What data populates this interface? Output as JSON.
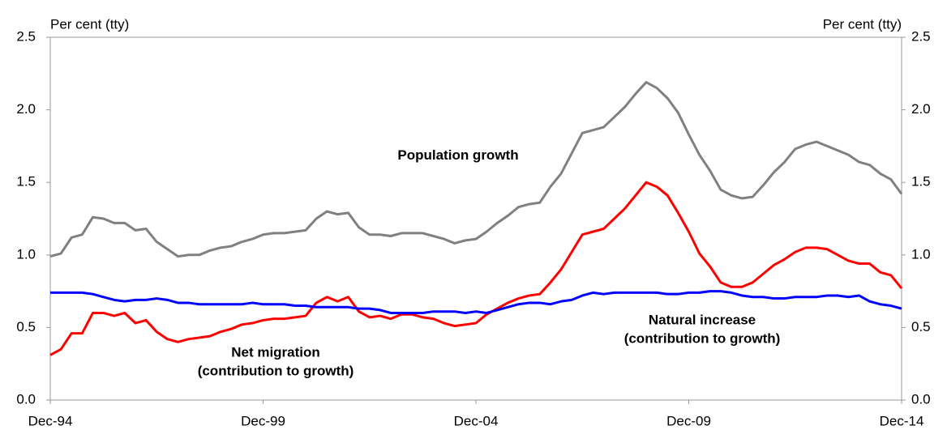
{
  "chart_data": {
    "type": "line",
    "categories": [
      "Dec-94",
      null,
      null,
      null,
      null,
      null,
      null,
      null,
      null,
      null,
      null,
      null,
      null,
      null,
      null,
      null,
      null,
      null,
      null,
      null,
      "Dec-99",
      null,
      null,
      null,
      null,
      null,
      null,
      null,
      null,
      null,
      null,
      null,
      null,
      null,
      null,
      null,
      null,
      null,
      null,
      null,
      "Dec-04",
      null,
      null,
      null,
      null,
      null,
      null,
      null,
      null,
      null,
      null,
      null,
      null,
      null,
      null,
      null,
      null,
      null,
      null,
      null,
      "Dec-09",
      null,
      null,
      null,
      null,
      null,
      null,
      null,
      null,
      null,
      null,
      null,
      null,
      null,
      null,
      null,
      null,
      null,
      null,
      null,
      "Dec-14"
    ],
    "series": [
      {
        "name": "Population growth",
        "color": "#808080",
        "values": [
          0.99,
          1.01,
          1.12,
          1.14,
          1.26,
          1.25,
          1.22,
          1.22,
          1.17,
          1.18,
          1.09,
          1.04,
          0.99,
          1.0,
          1.0,
          1.03,
          1.05,
          1.06,
          1.09,
          1.11,
          1.14,
          1.15,
          1.15,
          1.16,
          1.17,
          1.25,
          1.3,
          1.28,
          1.29,
          1.19,
          1.14,
          1.14,
          1.13,
          1.15,
          1.15,
          1.15,
          1.13,
          1.11,
          1.08,
          1.1,
          1.11,
          1.16,
          1.22,
          1.27,
          1.33,
          1.35,
          1.36,
          1.47,
          1.56,
          1.7,
          1.84,
          1.86,
          1.88,
          1.95,
          2.02,
          2.11,
          2.19,
          2.15,
          2.08,
          1.98,
          1.83,
          1.69,
          1.58,
          1.45,
          1.41,
          1.39,
          1.4,
          1.48,
          1.57,
          1.64,
          1.73,
          1.76,
          1.78,
          1.75,
          1.72,
          1.69,
          1.64,
          1.62,
          1.56,
          1.52,
          1.42
        ]
      },
      {
        "name": "Net migration\n(contribution to growth)",
        "color": "#ff0000",
        "values": [
          0.31,
          0.35,
          0.46,
          0.46,
          0.6,
          0.6,
          0.58,
          0.6,
          0.53,
          0.55,
          0.47,
          0.42,
          0.4,
          0.42,
          0.43,
          0.44,
          0.47,
          0.49,
          0.52,
          0.53,
          0.55,
          0.56,
          0.56,
          0.57,
          0.58,
          0.67,
          0.71,
          0.68,
          0.71,
          0.61,
          0.57,
          0.58,
          0.56,
          0.59,
          0.59,
          0.57,
          0.56,
          0.53,
          0.51,
          0.52,
          0.53,
          0.59,
          0.63,
          0.67,
          0.7,
          0.72,
          0.73,
          0.81,
          0.9,
          1.02,
          1.14,
          1.16,
          1.18,
          1.25,
          1.32,
          1.41,
          1.5,
          1.47,
          1.41,
          1.29,
          1.16,
          1.01,
          0.92,
          0.81,
          0.78,
          0.78,
          0.81,
          0.87,
          0.93,
          0.97,
          1.02,
          1.05,
          1.05,
          1.04,
          1.0,
          0.96,
          0.94,
          0.94,
          0.88,
          0.86,
          0.77
        ]
      },
      {
        "name": "Natural increase\n(contribution to growth)",
        "color": "#0000ff",
        "values": [
          0.74,
          0.74,
          0.74,
          0.74,
          0.73,
          0.71,
          0.69,
          0.68,
          0.69,
          0.69,
          0.7,
          0.69,
          0.67,
          0.67,
          0.66,
          0.66,
          0.66,
          0.66,
          0.66,
          0.67,
          0.66,
          0.66,
          0.66,
          0.65,
          0.65,
          0.64,
          0.64,
          0.64,
          0.64,
          0.63,
          0.63,
          0.62,
          0.6,
          0.6,
          0.6,
          0.6,
          0.61,
          0.61,
          0.61,
          0.6,
          0.61,
          0.6,
          0.62,
          0.64,
          0.66,
          0.67,
          0.67,
          0.66,
          0.68,
          0.69,
          0.72,
          0.74,
          0.73,
          0.74,
          0.74,
          0.74,
          0.74,
          0.74,
          0.73,
          0.73,
          0.74,
          0.74,
          0.75,
          0.75,
          0.74,
          0.72,
          0.71,
          0.71,
          0.7,
          0.7,
          0.71,
          0.71,
          0.71,
          0.72,
          0.72,
          0.71,
          0.72,
          0.68,
          0.66,
          0.65,
          0.63
        ]
      }
    ],
    "y_label": "Per cent (tty)",
    "y2_label": "Per cent (tty)",
    "ylim": [
      0,
      2.5
    ],
    "yticks": [
      {
        "value": 0,
        "label": "0.0"
      },
      {
        "value": 0.5,
        "label": "0.5"
      },
      {
        "value": 1,
        "label": "1.0"
      },
      {
        "value": 1.5,
        "label": "1.5"
      },
      {
        "value": 2,
        "label": "2.0"
      },
      {
        "value": 2.5,
        "label": "2.5"
      }
    ],
    "y2lim": [
      0,
      2.5
    ],
    "y2ticks": [
      {
        "value": 0,
        "label": "0.0"
      },
      {
        "value": 0.5,
        "label": "0.5"
      },
      {
        "value": 1,
        "label": "1.0"
      },
      {
        "value": 1.5,
        "label": "1.5"
      },
      {
        "value": 2,
        "label": "2.0"
      },
      {
        "value": 2.5,
        "label": "2.5"
      }
    ],
    "grid": false
  }
}
